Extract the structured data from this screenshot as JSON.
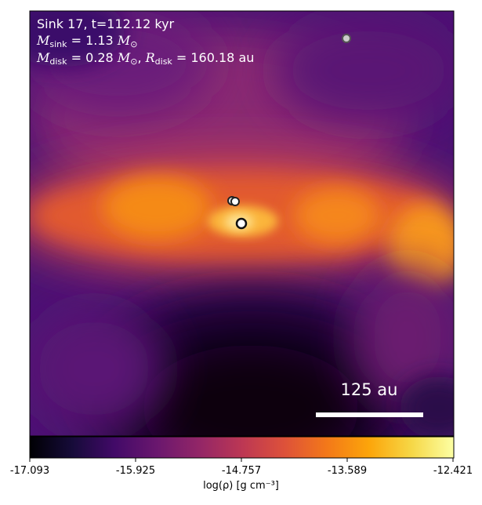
{
  "panel": {
    "title": "Sink 17, t=112.12 kyr",
    "msink_value": "1.13",
    "mdisk_value": "0.28",
    "rdisk_value": "160.18 au",
    "scale_bar_label": "125 au"
  },
  "colorbar": {
    "colormap": "inferno",
    "label": "log(ρ) [g cm⁻³]",
    "ticks": [
      "-17.093",
      "-15.925",
      "-14.757",
      "-13.589",
      "-12.421"
    ],
    "range": [
      -17.093,
      -12.421
    ]
  },
  "colors": {
    "scale_bar": "#ffffff",
    "text": "#ffffff"
  }
}
